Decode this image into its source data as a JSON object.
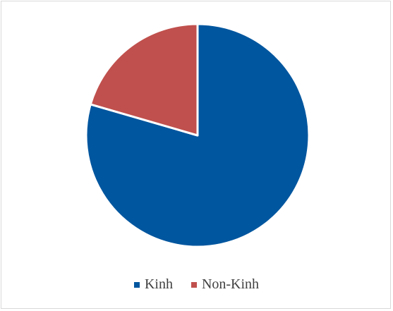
{
  "chart_data": {
    "type": "pie",
    "title": "",
    "labels": [
      "Kinh",
      "Non-Kinh"
    ],
    "values": [
      79.5,
      20.5
    ],
    "colors": [
      "#00569f",
      "#c0504d"
    ],
    "start_angle_deg": 0,
    "direction": "clockwise",
    "legend_position": "bottom",
    "slice_border_color": "#ffffff"
  }
}
